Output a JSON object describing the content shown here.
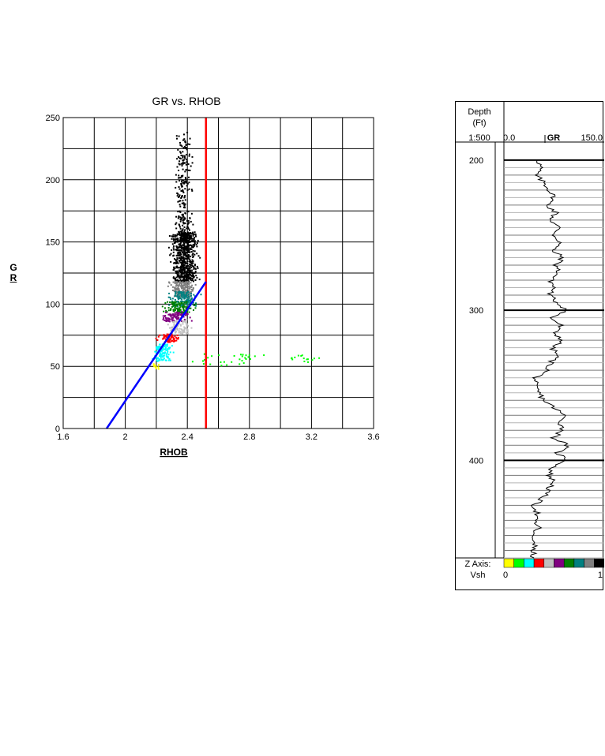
{
  "chart_data": [
    {
      "type": "scatter",
      "title": "GR vs. RHOB",
      "xlabel": "RHOB",
      "ylabel": "GR",
      "xlim": [
        1.6,
        3.6
      ],
      "ylim": [
        0,
        250
      ],
      "xticks": [
        "1.6",
        "2",
        "2.4",
        "2.8",
        "3.2",
        "3.6"
      ],
      "yticks": [
        "0",
        "50",
        "100",
        "150",
        "200",
        "250"
      ],
      "grid": true,
      "series": [
        {
          "color_band": "black",
          "color": "#000000",
          "x_range": [
            2.2,
            2.6
          ],
          "y_range": [
            118,
            235
          ],
          "approx_points": 900
        },
        {
          "color_band": "gray",
          "color": "#808080",
          "x_range": [
            2.22,
            2.52
          ],
          "y_range": [
            105,
            118
          ],
          "approx_points": 200
        },
        {
          "color_band": "teal",
          "color": "#008080",
          "x_range": [
            2.2,
            2.55
          ],
          "y_range": [
            98,
            110
          ],
          "approx_points": 150
        },
        {
          "color_band": "green",
          "color": "#008000",
          "x_range": [
            2.15,
            2.55
          ],
          "y_range": [
            93,
            102
          ],
          "approx_points": 120
        },
        {
          "color_band": "purple",
          "color": "#800080",
          "x_range": [
            2.15,
            2.5
          ],
          "y_range": [
            86,
            94
          ],
          "approx_points": 100
        },
        {
          "color_band": "silver",
          "color": "#c0c0c0",
          "x_range": [
            2.2,
            2.5
          ],
          "y_range": [
            76,
            88
          ],
          "approx_points": 90
        },
        {
          "color_band": "red",
          "color": "#ff0000",
          "x_range": [
            2.15,
            2.42
          ],
          "y_range": [
            69,
            76
          ],
          "approx_points": 70
        },
        {
          "color_band": "cyan",
          "color": "#00ffff",
          "x_range": [
            2.12,
            2.35
          ],
          "y_range": [
            54,
            68
          ],
          "approx_points": 120
        },
        {
          "color_band": "lime",
          "color": "#00ff00",
          "x_range": [
            2.15,
            3.2
          ],
          "y_range": [
            50,
            60
          ],
          "approx_points": 45
        },
        {
          "color_band": "yellow",
          "color": "#ffff00",
          "x_range": [
            2.15,
            2.25
          ],
          "y_range": [
            47,
            52
          ],
          "approx_points": 12
        }
      ],
      "lines": [
        {
          "name": "vertical cutoff",
          "color": "#ff0000",
          "x": [
            2.52,
            2.52
          ],
          "y": [
            0,
            250
          ]
        },
        {
          "name": "trend",
          "color": "#0000ff",
          "x": [
            1.88,
            2.52
          ],
          "y": [
            0,
            118
          ]
        }
      ]
    },
    {
      "type": "line",
      "depth_track": {
        "header_line1": "Depth",
        "header_line2": "(Ft)",
        "scale": "1:500",
        "depth_ticks": [
          "200",
          "300",
          "400"
        ],
        "depth_range": [
          188,
          465
        ]
      },
      "curve": {
        "name": "GR",
        "min_label": "0.0",
        "max_label": "150.0",
        "range": [
          0,
          150
        ],
        "color": "#000000",
        "depth": [
          200,
          205,
          210,
          215,
          220,
          225,
          230,
          235,
          240,
          245,
          250,
          255,
          260,
          265,
          270,
          275,
          280,
          285,
          290,
          295,
          300,
          305,
          310,
          315,
          320,
          325,
          330,
          335,
          340,
          345,
          350,
          355,
          360,
          365,
          370,
          375,
          380,
          385,
          390,
          395,
          400,
          405,
          410,
          415,
          420,
          425,
          430,
          435,
          440,
          445,
          450,
          455,
          460,
          465
        ],
        "values": [
          52,
          55,
          47,
          60,
          68,
          75,
          65,
          78,
          70,
          82,
          75,
          85,
          72,
          88,
          78,
          82,
          70,
          75,
          68,
          80,
          95,
          70,
          85,
          75,
          88,
          72,
          80,
          70,
          65,
          48,
          45,
          52,
          60,
          75,
          90,
          85,
          88,
          75,
          95,
          80,
          95,
          72,
          68,
          75,
          65,
          58,
          45,
          50,
          45,
          52,
          40,
          48,
          42,
          45
        ]
      },
      "zaxis": {
        "label_line1": "Z Axis:",
        "label_line2": "Vsh",
        "min": "0",
        "max": "1",
        "colors": [
          "#ffff00",
          "#00ff00",
          "#00ffff",
          "#ff0000",
          "#c0c0c0",
          "#800080",
          "#008000",
          "#008080",
          "#808080",
          "#000000"
        ]
      }
    }
  ]
}
